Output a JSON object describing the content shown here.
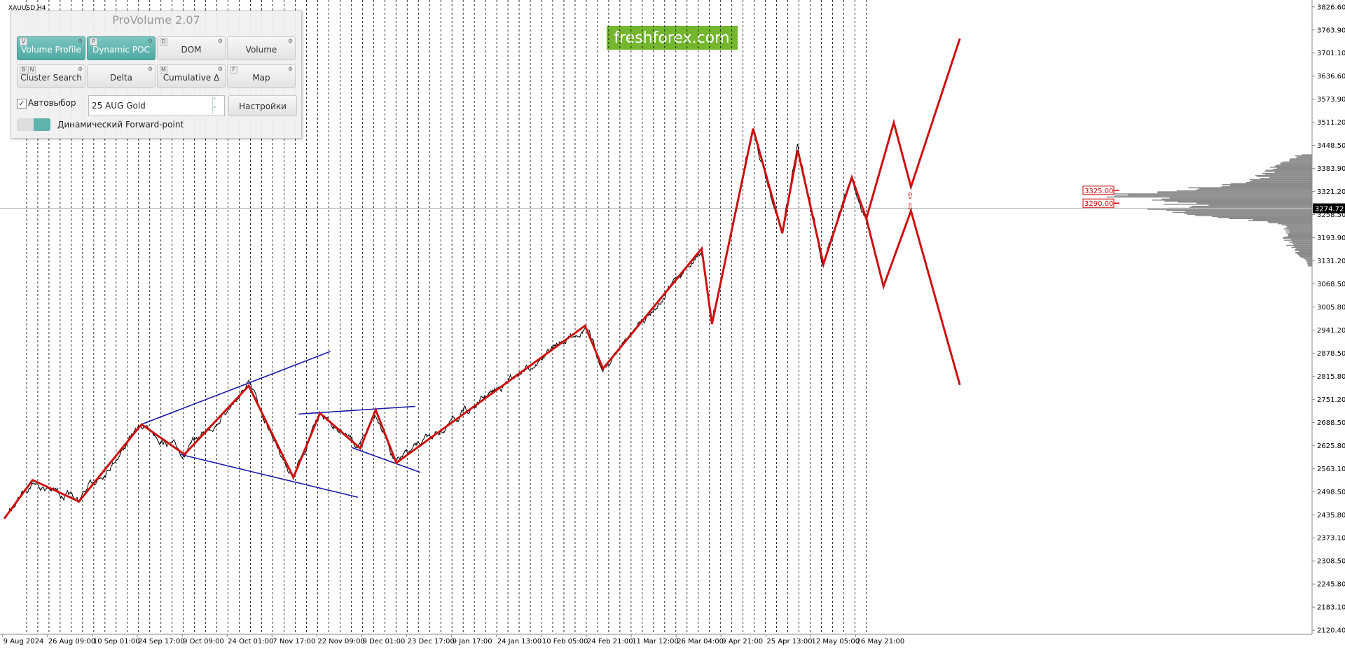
{
  "window": {
    "symbol": "XAUUSD,H4",
    "watermark": "freshforex.com"
  },
  "panel": {
    "title": "ProVolume 2.07",
    "buttons": [
      {
        "keys": [
          "V"
        ],
        "label": "Volume Profile",
        "active": true
      },
      {
        "keys": [
          "P"
        ],
        "label": "Dynamic POC",
        "active": true
      },
      {
        "keys": [
          "D"
        ],
        "label": "DOM",
        "active": false
      },
      {
        "keys": [],
        "label": "Volume",
        "active": false
      },
      {
        "keys": [
          "B",
          "N"
        ],
        "label": "Cluster Search",
        "active": false
      },
      {
        "keys": [],
        "label": "Delta",
        "active": false
      },
      {
        "keys": [
          "M"
        ],
        "label": "Cumulative Δ",
        "active": false
      },
      {
        "keys": [
          "F"
        ],
        "label": "Map",
        "active": false
      }
    ],
    "autoselect": "Автовыбор",
    "instrument": "25 AUG Gold",
    "settings": "Настройки",
    "forward": "Динамический Forward-point"
  },
  "price_axis": {
    "labels": [
      "3826.60",
      "3763.90",
      "3701.10",
      "3636.60",
      "3573.90",
      "3511.20",
      "3448.50",
      "3383.90",
      "3321.20",
      "3258.50",
      "3193.90",
      "3131.20",
      "3068.50",
      "3005.80",
      "2941.20",
      "2878.50",
      "2815.80",
      "2751.20",
      "2688.50",
      "2625.80",
      "2563.10",
      "2498.50",
      "2435.80",
      "2373.10",
      "2308.50",
      "2245.80",
      "2183.10",
      "2120.40"
    ],
    "current": "3274.72"
  },
  "levels": [
    "3325.00",
    "3290.00"
  ],
  "time_axis": {
    "labels": [
      "9 Aug 2024",
      "26 Aug 09:00",
      "10 Sep 01:00",
      "24 Sep 17:00",
      "9 Oct 09:00",
      "24 Oct 01:00",
      "7 Nov 17:00",
      "22 Nov 09:00",
      "9 Dec 01:00",
      "23 Dec 17:00",
      "9 Jan 17:00",
      "24 Jan 13:00",
      "10 Feb 05:00",
      "24 Feb 21:00",
      "11 Mar 12:00",
      "26 Mar 04:00",
      "9 Apr 21:00",
      "25 Apr 13:00",
      "12 May 05:00",
      "26 May 21:00"
    ]
  }
}
